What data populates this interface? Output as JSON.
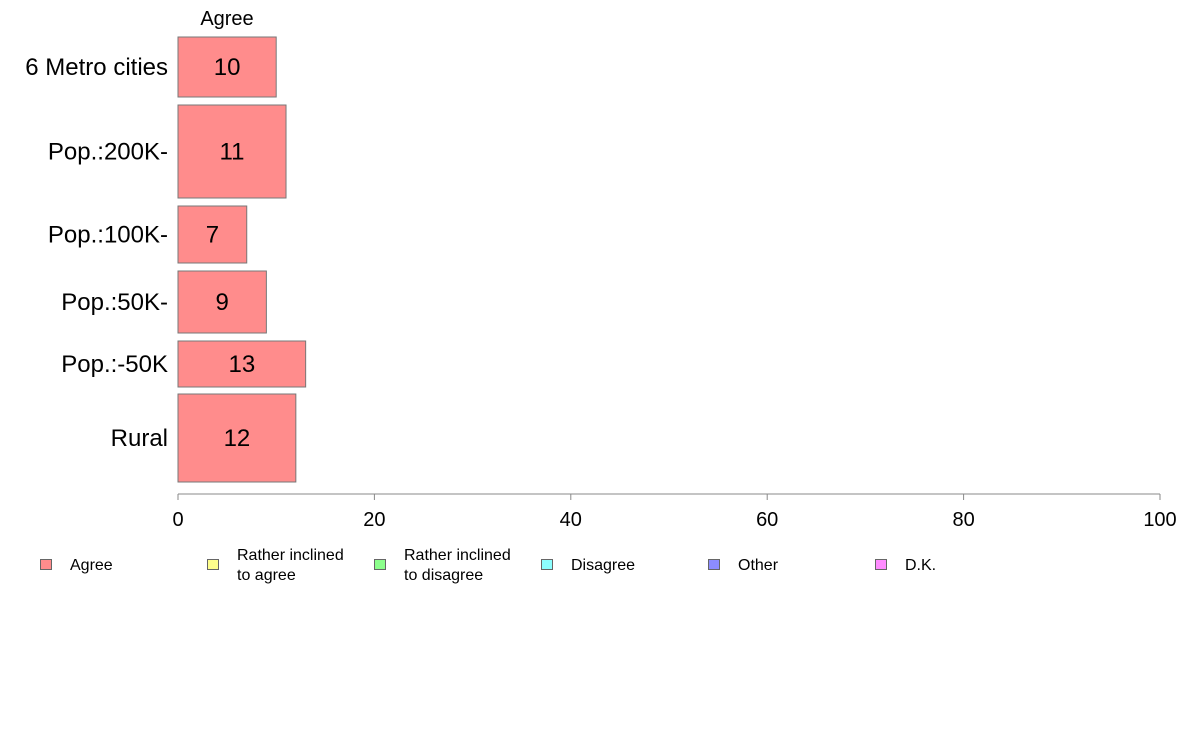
{
  "chart_data": {
    "type": "bar",
    "orientation": "horizontal",
    "stacked": true,
    "header_label": "Agree",
    "categories": [
      "6 Metro cities",
      "Pop.:200K-",
      "Pop.:100K-",
      "Pop.:50K-",
      "Pop.:-50K",
      "Rural"
    ],
    "series": [
      {
        "name": "Agree",
        "color": "#ff8c8c",
        "values": [
          10,
          11,
          7,
          9,
          13,
          12
        ]
      }
    ],
    "data_labels": [
      "10",
      "11",
      "7",
      "9",
      "13",
      "12"
    ],
    "xlim": [
      0,
      100
    ],
    "xticks": [
      0,
      20,
      40,
      60,
      80,
      100
    ],
    "xtick_labels": [
      "0",
      "20",
      "40",
      "60",
      "80",
      "100"
    ],
    "grid": false,
    "legend_position": "bottom",
    "legend": [
      {
        "label": "Agree",
        "color": "#ff8c8c"
      },
      {
        "label": "Rather inclined\nto agree",
        "color": "#ffff8c"
      },
      {
        "label": "Rather inclined\nto disagree",
        "color": "#8cff8c"
      },
      {
        "label": "Disagree",
        "color": "#8cffff"
      },
      {
        "label": "Other",
        "color": "#8c8cff"
      },
      {
        "label": "D.K.",
        "color": "#ff8cff"
      }
    ]
  }
}
